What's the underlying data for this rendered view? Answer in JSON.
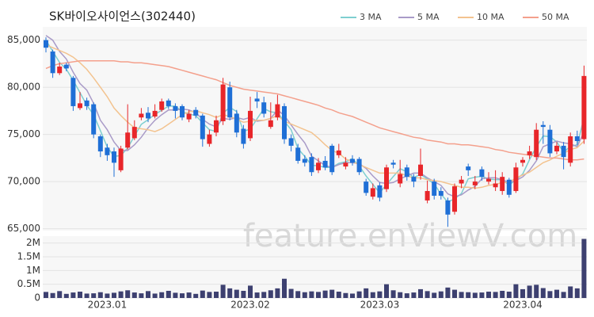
{
  "chart_data": {
    "type": "candlestick",
    "title": "SK바이오사이언스(302440)",
    "watermark": "feature.enViewV.com",
    "categories": [
      null,
      null,
      null,
      null,
      null,
      null,
      null,
      null,
      null,
      "2023.01",
      null,
      null,
      null,
      null,
      null,
      null,
      null,
      null,
      null,
      null,
      null,
      null,
      null,
      null,
      null,
      null,
      null,
      null,
      null,
      null,
      "2023.02",
      null,
      null,
      null,
      null,
      null,
      null,
      null,
      null,
      null,
      null,
      null,
      null,
      null,
      null,
      null,
      null,
      null,
      null,
      "2023.03",
      null,
      null,
      null,
      null,
      null,
      null,
      null,
      null,
      null,
      null,
      null,
      null,
      null,
      null,
      null,
      null,
      null,
      null,
      null,
      null,
      "2023.04",
      null,
      null,
      null,
      null,
      null,
      null,
      null,
      null,
      null
    ],
    "open": [
      85000,
      83800,
      81500,
      82400,
      81000,
      77800,
      78600,
      78200,
      74800,
      73600,
      73200,
      71200,
      73600,
      74600,
      76800,
      77300,
      76900,
      77600,
      78600,
      78000,
      78000,
      76600,
      77600,
      77000,
      74000,
      75200,
      76400,
      80000,
      77200,
      75600,
      74600,
      78800,
      78400,
      75800,
      76800,
      78000,
      74600,
      73600,
      72400,
      72600,
      71200,
      72200,
      73800,
      72800,
      71600,
      72400,
      72400,
      70000,
      68400,
      69600,
      69200,
      72000,
      69800,
      71500,
      70500,
      70600,
      68000,
      70000,
      69000,
      68000,
      66800,
      69800,
      71600,
      69600,
      71300,
      70000,
      69400,
      69000,
      70200,
      69000,
      72000,
      72800,
      72600,
      76000,
      75500,
      73200,
      73800,
      72000,
      74800,
      74500
    ],
    "high": [
      85300,
      84000,
      82600,
      82600,
      81200,
      79500,
      78900,
      78400,
      75000,
      74000,
      73600,
      73800,
      78200,
      76500,
      77800,
      77900,
      78200,
      78800,
      78800,
      78300,
      78200,
      77600,
      77900,
      77200,
      75500,
      77000,
      81000,
      80600,
      77600,
      76000,
      79000,
      79500,
      79000,
      78400,
      79200,
      78300,
      75000,
      74000,
      72800,
      73000,
      72500,
      72700,
      74000,
      74000,
      72600,
      72800,
      72600,
      70300,
      69800,
      69900,
      71800,
      72300,
      72300,
      71800,
      70800,
      73500,
      70100,
      70300,
      69400,
      68300,
      69800,
      70600,
      71900,
      70600,
      71600,
      71000,
      71200,
      71000,
      70400,
      72000,
      72600,
      73800,
      76200,
      76400,
      76000,
      74200,
      74200,
      75200,
      75400,
      82300
    ],
    "low": [
      83700,
      81000,
      81300,
      81700,
      77500,
      77600,
      77600,
      74600,
      72600,
      72200,
      70500,
      71000,
      73400,
      74400,
      76500,
      76300,
      76700,
      77400,
      77700,
      76700,
      76500,
      76300,
      76700,
      73700,
      73700,
      74800,
      76000,
      76500,
      74700,
      73500,
      74300,
      77800,
      76800,
      75600,
      76500,
      74000,
      73200,
      71900,
      71600,
      70600,
      70900,
      71200,
      70700,
      72500,
      71300,
      71700,
      70700,
      68500,
      68100,
      67900,
      68900,
      71400,
      69400,
      70100,
      69400,
      70200,
      67700,
      68100,
      68100,
      65200,
      66500,
      69300,
      70600,
      69200,
      70100,
      69700,
      69000,
      68600,
      68300,
      68800,
      71600,
      72400,
      72300,
      74000,
      72600,
      72900,
      71300,
      71600,
      73900,
      74000
    ],
    "close": [
      84200,
      81500,
      82200,
      82000,
      78000,
      78300,
      78000,
      75000,
      73200,
      72800,
      72000,
      73500,
      75200,
      75800,
      77200,
      76700,
      77500,
      78500,
      78000,
      77500,
      76800,
      77200,
      77000,
      74500,
      75000,
      76500,
      80300,
      76800,
      75200,
      74000,
      77500,
      78500,
      77200,
      76500,
      78200,
      74500,
      73800,
      72200,
      72000,
      71000,
      72000,
      71500,
      71000,
      73300,
      72000,
      72000,
      71000,
      68800,
      69300,
      68300,
      71500,
      71800,
      70800,
      70500,
      70000,
      71800,
      69000,
      68500,
      68500,
      66500,
      69500,
      70200,
      71200,
      70000,
      70500,
      70300,
      69800,
      70500,
      68600,
      71500,
      72300,
      73200,
      75500,
      75800,
      73000,
      73800,
      72600,
      74800,
      74300,
      81200
    ],
    "up_color": "#e8262a",
    "down_color": "#1f6fd6",
    "ylim": [
      64800,
      86400
    ],
    "yticks": [
      {
        "value": 65000,
        "label": "65,000"
      },
      {
        "value": 70000,
        "label": "70,000"
      },
      {
        "value": 75000,
        "label": "75,000"
      },
      {
        "value": 80000,
        "label": "80,000"
      },
      {
        "value": 85000,
        "label": "85,000"
      }
    ],
    "grid": true,
    "series": [
      {
        "name": "3 MA",
        "color": "#7ecfd0",
        "values": [
          85000,
          83800,
          82633,
          81900,
          80733,
          79433,
          78100,
          77100,
          75400,
          73667,
          72667,
          72767,
          73567,
          74833,
          76067,
          76567,
          77133,
          77567,
          78000,
          78000,
          77433,
          77167,
          77000,
          76233,
          75500,
          75333,
          77267,
          77867,
          77433,
          75333,
          75567,
          76667,
          77733,
          77400,
          77300,
          76400,
          75500,
          73500,
          72667,
          71733,
          71667,
          71500,
          71500,
          71933,
          72100,
          72433,
          71667,
          70600,
          69700,
          68800,
          69700,
          70533,
          71367,
          71033,
          70433,
          70767,
          70267,
          69767,
          68667,
          67833,
          68167,
          68733,
          70300,
          70467,
          70567,
          70267,
          70200,
          70200,
          69633,
          70200,
          70800,
          72333,
          73667,
          74833,
          74767,
          74200,
          73133,
          73733,
          73900,
          76767
        ]
      },
      {
        "name": "5 MA",
        "color": "#a99bc8",
        "values": [
          85500,
          85000,
          83800,
          83000,
          81600,
          80400,
          79700,
          78300,
          76500,
          75500,
          74200,
          73300,
          73300,
          73900,
          74700,
          75700,
          76500,
          77100,
          77600,
          77600,
          77700,
          77600,
          77300,
          76600,
          76100,
          75800,
          76700,
          76600,
          76800,
          76600,
          76800,
          76400,
          76500,
          76700,
          77600,
          77000,
          76000,
          75000,
          74100,
          72700,
          72200,
          71700,
          71500,
          71800,
          72000,
          72000,
          71900,
          71400,
          70600,
          69900,
          69800,
          69900,
          70300,
          70600,
          70900,
          70900,
          70400,
          70000,
          69600,
          68700,
          68400,
          68600,
          69100,
          69500,
          70300,
          70400,
          70400,
          70200,
          69900,
          70100,
          70500,
          71200,
          72200,
          73700,
          74000,
          74300,
          74100,
          74000,
          73700,
          75300
        ]
      },
      {
        "name": "10 MA",
        "color": "#f3c38f",
        "values": [
          84500,
          84200,
          83900,
          83600,
          83200,
          82600,
          81900,
          81000,
          80000,
          79000,
          77800,
          77000,
          76300,
          75700,
          75600,
          75500,
          75300,
          75600,
          76100,
          76600,
          77100,
          77400,
          77500,
          77300,
          77100,
          76800,
          77100,
          76900,
          76600,
          76300,
          76400,
          76500,
          76500,
          76700,
          77000,
          76400,
          76100,
          75800,
          75500,
          75200,
          74600,
          73900,
          73300,
          73000,
          72400,
          72100,
          71800,
          71500,
          71200,
          70900,
          70900,
          70900,
          70900,
          70600,
          70400,
          70400,
          70200,
          70100,
          70000,
          69800,
          69600,
          69400,
          69400,
          69300,
          69400,
          69600,
          69700,
          69900,
          69900,
          70400,
          70700,
          71000,
          71500,
          72000,
          72300,
          72700,
          73000,
          73400,
          73600,
          74300
        ]
      },
      {
        "name": "50 MA",
        "color": "#f4a08c",
        "values": [
          82000,
          82300,
          82500,
          82600,
          82700,
          82800,
          82800,
          82800,
          82800,
          82800,
          82800,
          82700,
          82700,
          82600,
          82600,
          82500,
          82400,
          82300,
          82200,
          82000,
          81800,
          81600,
          81400,
          81200,
          81000,
          80800,
          80500,
          80200,
          80000,
          79800,
          79700,
          79600,
          79500,
          79400,
          79300,
          79100,
          78900,
          78700,
          78500,
          78300,
          78100,
          77800,
          77600,
          77300,
          77100,
          76900,
          76600,
          76300,
          76000,
          75700,
          75500,
          75300,
          75100,
          74900,
          74700,
          74600,
          74400,
          74300,
          74200,
          74000,
          74000,
          73900,
          73900,
          73800,
          73700,
          73600,
          73400,
          73300,
          73100,
          73000,
          72900,
          72800,
          72700,
          72600,
          72500,
          72500,
          72400,
          72300,
          72300,
          72400
        ]
      }
    ],
    "volume": {
      "color": "#3d4070",
      "ylim": [
        0,
        2250000
      ],
      "yticks": [
        0,
        {
          "value": 500000,
          "label": "0.5M"
        },
        {
          "value": 1000000,
          "label": "1M"
        },
        {
          "value": 1500000,
          "label": "1.5M"
        },
        {
          "value": 2000000,
          "label": "2M"
        }
      ],
      "values": [
        220000,
        180000,
        250000,
        150000,
        200000,
        230000,
        160000,
        170000,
        210000,
        160000,
        190000,
        240000,
        280000,
        200000,
        170000,
        250000,
        160000,
        210000,
        260000,
        190000,
        170000,
        200000,
        150000,
        270000,
        220000,
        230000,
        480000,
        350000,
        300000,
        260000,
        450000,
        200000,
        220000,
        280000,
        350000,
        700000,
        330000,
        250000,
        210000,
        240000,
        220000,
        270000,
        300000,
        230000,
        180000,
        160000,
        240000,
        350000,
        210000,
        240000,
        500000,
        280000,
        210000,
        170000,
        200000,
        320000,
        250000,
        190000,
        240000,
        380000,
        300000,
        220000,
        210000,
        190000,
        200000,
        230000,
        220000,
        260000,
        230000,
        500000,
        320000,
        450000,
        480000,
        360000,
        250000,
        300000,
        220000,
        420000,
        350000,
        2150000
      ]
    }
  }
}
